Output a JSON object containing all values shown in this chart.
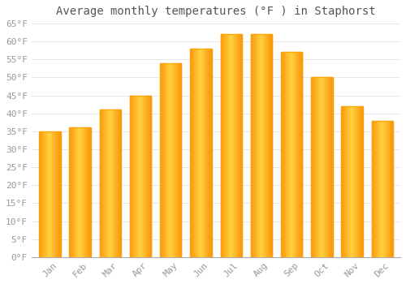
{
  "title": "Average monthly temperatures (°F ) in Staphorst",
  "months": [
    "Jan",
    "Feb",
    "Mar",
    "Apr",
    "May",
    "Jun",
    "Jul",
    "Aug",
    "Sep",
    "Oct",
    "Nov",
    "Dec"
  ],
  "values": [
    35,
    36,
    41,
    45,
    54,
    58,
    62,
    62,
    57,
    50,
    42,
    38
  ],
  "bar_color_center": "#FFD060",
  "bar_color_edge": "#FFA000",
  "background_color": "#FFFFFF",
  "grid_color": "#DDDDDD",
  "tick_label_color": "#999999",
  "title_color": "#555555",
  "ylim": [
    0,
    65
  ],
  "yticks": [
    0,
    5,
    10,
    15,
    20,
    25,
    30,
    35,
    40,
    45,
    50,
    55,
    60,
    65
  ],
  "ytick_labels": [
    "0°F",
    "5°F",
    "10°F",
    "15°F",
    "20°F",
    "25°F",
    "30°F",
    "35°F",
    "40°F",
    "45°F",
    "50°F",
    "55°F",
    "60°F",
    "65°F"
  ],
  "title_fontsize": 10,
  "tick_fontsize": 8,
  "figsize": [
    5.0,
    3.5
  ],
  "dpi": 100,
  "bar_width": 0.7
}
